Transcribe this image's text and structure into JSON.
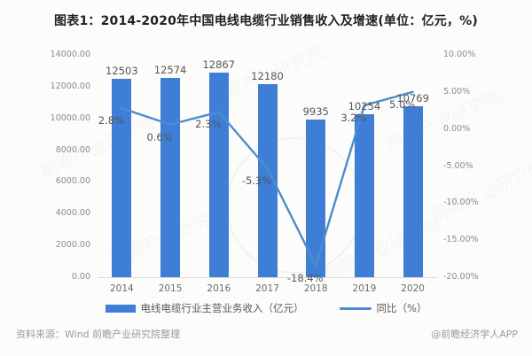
{
  "title": "图表1：2014-2020年中国电线电缆行业销售收入及增速(单位：亿元，%)",
  "footer": {
    "source": "资料来源：Wind 前瞻产业研究院整理",
    "credit": "@前瞻经济学人APP"
  },
  "legend": [
    {
      "label": "电线电缆行业主营业务收入（亿元）",
      "marker": "bar"
    },
    {
      "label": "同比（%）",
      "marker": "line"
    }
  ],
  "colors": {
    "bar": "#3e7ed6",
    "line": "#4e8ccd",
    "data_label": "#555555",
    "axis_label": "#8a8a8a",
    "title": "#222222",
    "footer": "#9a9a9a"
  },
  "watermark": {
    "text": "前瞻产业研究院"
  },
  "chart_data": {
    "type": "bar",
    "subtype": "bar+line combo",
    "title": "图表1：2014-2020年中国电线电缆行业销售收入及增速(单位：亿元，%)",
    "categories": [
      "2014",
      "2015",
      "2016",
      "2017",
      "2018",
      "2019",
      "2020"
    ],
    "series": [
      {
        "name": "电线电缆行业主营业务收入（亿元）",
        "type": "bar",
        "axis": "left",
        "values": [
          12503,
          12574,
          12867,
          12180,
          9935,
          10254,
          10769
        ],
        "labels": [
          "12503",
          "12574",
          "12867",
          "12180",
          "9935",
          "10254",
          "10769"
        ]
      },
      {
        "name": "同比（%）",
        "type": "line",
        "axis": "right",
        "values": [
          2.8,
          0.6,
          2.3,
          -5.3,
          -18.4,
          3.2,
          5.0
        ],
        "labels": [
          "2.8%",
          "0.6%",
          "2.3%",
          "-5.3%",
          "-18.4%",
          "3.2%",
          "5.0%"
        ]
      }
    ],
    "left_axis": {
      "min": 0,
      "max": 14000,
      "step": 2000,
      "tick_labels": [
        "14000.00",
        "12000.00",
        "10000.00",
        "8000.00",
        "6000.00",
        "4000.00",
        "2000.00",
        "0.00"
      ]
    },
    "right_axis": {
      "min": -20,
      "max": 10,
      "step": 5,
      "tick_labels": [
        "10.00%",
        "5.00%",
        "0.00%",
        "-5.00%",
        "-10.00%",
        "-15.00%",
        "-20.00%"
      ]
    },
    "grid": false,
    "legend_position": "bottom"
  }
}
